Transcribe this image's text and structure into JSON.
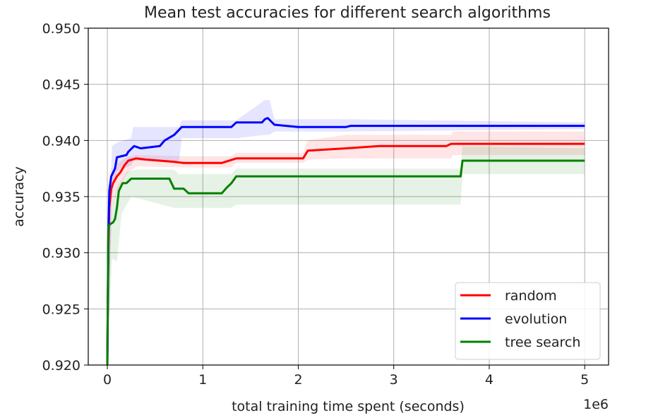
{
  "chart_data": {
    "type": "line",
    "title": "Mean test accuracies for different search algorithms",
    "xlabel": "total training time spent (seconds)",
    "ylabel": "accuracy",
    "x_offset_label": "1e6",
    "xlim": [
      -0.2,
      5.25
    ],
    "ylim": [
      0.92,
      0.95
    ],
    "x_unit_multiplier": 1000000,
    "xticks": [
      0,
      1,
      2,
      3,
      4,
      5
    ],
    "xtick_labels": [
      "0",
      "1",
      "2",
      "3",
      "4",
      "5"
    ],
    "yticks": [
      0.92,
      0.925,
      0.93,
      0.935,
      0.94,
      0.945,
      0.95
    ],
    "ytick_labels": [
      "0.920",
      "0.925",
      "0.930",
      "0.935",
      "0.940",
      "0.945",
      "0.950"
    ],
    "grid": true,
    "legend_position": "lower-right",
    "series": [
      {
        "name": "random",
        "color": "#ff0000",
        "points": [
          [
            0,
            0.92
          ],
          [
            0.01,
            0.93
          ],
          [
            0.02,
            0.934
          ],
          [
            0.04,
            0.9357
          ],
          [
            0.06,
            0.9362
          ],
          [
            0.08,
            0.9365
          ],
          [
            0.1,
            0.9368
          ],
          [
            0.14,
            0.9372
          ],
          [
            0.18,
            0.9378
          ],
          [
            0.22,
            0.9382
          ],
          [
            0.3,
            0.9384
          ],
          [
            0.4,
            0.9383
          ],
          [
            0.55,
            0.9382
          ],
          [
            0.7,
            0.9381
          ],
          [
            0.8,
            0.938
          ],
          [
            1.2,
            0.938
          ],
          [
            1.35,
            0.9384
          ],
          [
            2.05,
            0.9384
          ],
          [
            2.1,
            0.9391
          ],
          [
            2.5,
            0.9393
          ],
          [
            2.85,
            0.9395
          ],
          [
            3.55,
            0.9395
          ],
          [
            3.6,
            0.9397
          ],
          [
            5.0,
            0.9397
          ]
        ],
        "band_upper": [
          [
            0,
            0.928
          ],
          [
            0.05,
            0.9372
          ],
          [
            0.1,
            0.9379
          ],
          [
            0.2,
            0.9385
          ],
          [
            0.3,
            0.9387
          ],
          [
            0.8,
            0.9386
          ],
          [
            1.3,
            0.9386
          ],
          [
            1.35,
            0.9389
          ],
          [
            2.05,
            0.9389
          ],
          [
            2.1,
            0.94
          ],
          [
            2.5,
            0.9405
          ],
          [
            3.6,
            0.9405
          ],
          [
            3.62,
            0.9408
          ],
          [
            5.0,
            0.9408
          ]
        ],
        "band_lower": [
          [
            0,
            0.92
          ],
          [
            0.05,
            0.9342
          ],
          [
            0.1,
            0.9355
          ],
          [
            0.2,
            0.937
          ],
          [
            0.3,
            0.9377
          ],
          [
            0.8,
            0.9376
          ],
          [
            1.3,
            0.9376
          ],
          [
            1.35,
            0.938
          ],
          [
            2.05,
            0.938
          ],
          [
            2.1,
            0.9383
          ],
          [
            2.5,
            0.9384
          ],
          [
            3.6,
            0.9384
          ],
          [
            3.62,
            0.9387
          ],
          [
            5.0,
            0.9387
          ]
        ]
      },
      {
        "name": "evolution",
        "color": "#0000ff",
        "points": [
          [
            0,
            0.92
          ],
          [
            0.01,
            0.931
          ],
          [
            0.02,
            0.9355
          ],
          [
            0.04,
            0.9368
          ],
          [
            0.08,
            0.9375
          ],
          [
            0.1,
            0.9385
          ],
          [
            0.2,
            0.9387
          ],
          [
            0.22,
            0.939
          ],
          [
            0.28,
            0.9395
          ],
          [
            0.35,
            0.9393
          ],
          [
            0.55,
            0.9395
          ],
          [
            0.6,
            0.94
          ],
          [
            0.7,
            0.9405
          ],
          [
            0.78,
            0.9412
          ],
          [
            1.3,
            0.9412
          ],
          [
            1.35,
            0.9416
          ],
          [
            1.62,
            0.9416
          ],
          [
            1.65,
            0.9419
          ],
          [
            1.68,
            0.942
          ],
          [
            1.75,
            0.9414
          ],
          [
            2.0,
            0.9412
          ],
          [
            2.5,
            0.9412
          ],
          [
            2.55,
            0.9413
          ],
          [
            5.0,
            0.9413
          ]
        ],
        "band_upper": [
          [
            0,
            0.929
          ],
          [
            0.05,
            0.9395
          ],
          [
            0.1,
            0.9398
          ],
          [
            0.25,
            0.9402
          ],
          [
            0.27,
            0.9412
          ],
          [
            0.75,
            0.9412
          ],
          [
            0.78,
            0.9418
          ],
          [
            1.35,
            0.9418
          ],
          [
            1.65,
            0.9436
          ],
          [
            1.7,
            0.9436
          ],
          [
            1.75,
            0.9419
          ],
          [
            2.5,
            0.9419
          ],
          [
            5.0,
            0.9416
          ]
        ],
        "band_lower": [
          [
            0,
            0.92
          ],
          [
            0.05,
            0.9352
          ],
          [
            0.1,
            0.9372
          ],
          [
            0.25,
            0.9378
          ],
          [
            0.27,
            0.9382
          ],
          [
            0.75,
            0.9382
          ],
          [
            0.78,
            0.9402
          ],
          [
            1.35,
            0.9402
          ],
          [
            1.65,
            0.9405
          ],
          [
            1.7,
            0.9405
          ],
          [
            1.75,
            0.9408
          ],
          [
            2.5,
            0.9408
          ],
          [
            5.0,
            0.941
          ]
        ]
      },
      {
        "name": "tree search",
        "color": "#008000",
        "points": [
          [
            0,
            0.92
          ],
          [
            0.01,
            0.932
          ],
          [
            0.02,
            0.9325
          ],
          [
            0.06,
            0.9327
          ],
          [
            0.08,
            0.933
          ],
          [
            0.1,
            0.934
          ],
          [
            0.12,
            0.9355
          ],
          [
            0.16,
            0.9362
          ],
          [
            0.2,
            0.9362
          ],
          [
            0.25,
            0.9366
          ],
          [
            0.3,
            0.9366
          ],
          [
            0.5,
            0.9366
          ],
          [
            0.65,
            0.9366
          ],
          [
            0.7,
            0.9357
          ],
          [
            0.8,
            0.9357
          ],
          [
            0.85,
            0.9353
          ],
          [
            1.2,
            0.9353
          ],
          [
            1.25,
            0.9358
          ],
          [
            1.3,
            0.9362
          ],
          [
            1.35,
            0.9368
          ],
          [
            1.45,
            0.9368
          ],
          [
            2.0,
            0.9368
          ],
          [
            3.7,
            0.9368
          ],
          [
            3.72,
            0.9382
          ],
          [
            5.0,
            0.9382
          ]
        ],
        "band_upper": [
          [
            0,
            0.926
          ],
          [
            0.05,
            0.9342
          ],
          [
            0.1,
            0.9358
          ],
          [
            0.2,
            0.9372
          ],
          [
            0.3,
            0.9374
          ],
          [
            0.7,
            0.9374
          ],
          [
            0.75,
            0.937
          ],
          [
            1.3,
            0.937
          ],
          [
            1.35,
            0.9375
          ],
          [
            3.7,
            0.9375
          ],
          [
            3.72,
            0.9395
          ],
          [
            5.0,
            0.9393
          ]
        ],
        "band_lower": [
          [
            0,
            0.92
          ],
          [
            0.05,
            0.9295
          ],
          [
            0.1,
            0.9292
          ],
          [
            0.15,
            0.9335
          ],
          [
            0.25,
            0.935
          ],
          [
            0.7,
            0.934
          ],
          [
            0.75,
            0.934
          ],
          [
            1.3,
            0.934
          ],
          [
            1.35,
            0.9343
          ],
          [
            3.7,
            0.9343
          ],
          [
            3.72,
            0.937
          ],
          [
            5.0,
            0.937
          ]
        ]
      }
    ]
  }
}
